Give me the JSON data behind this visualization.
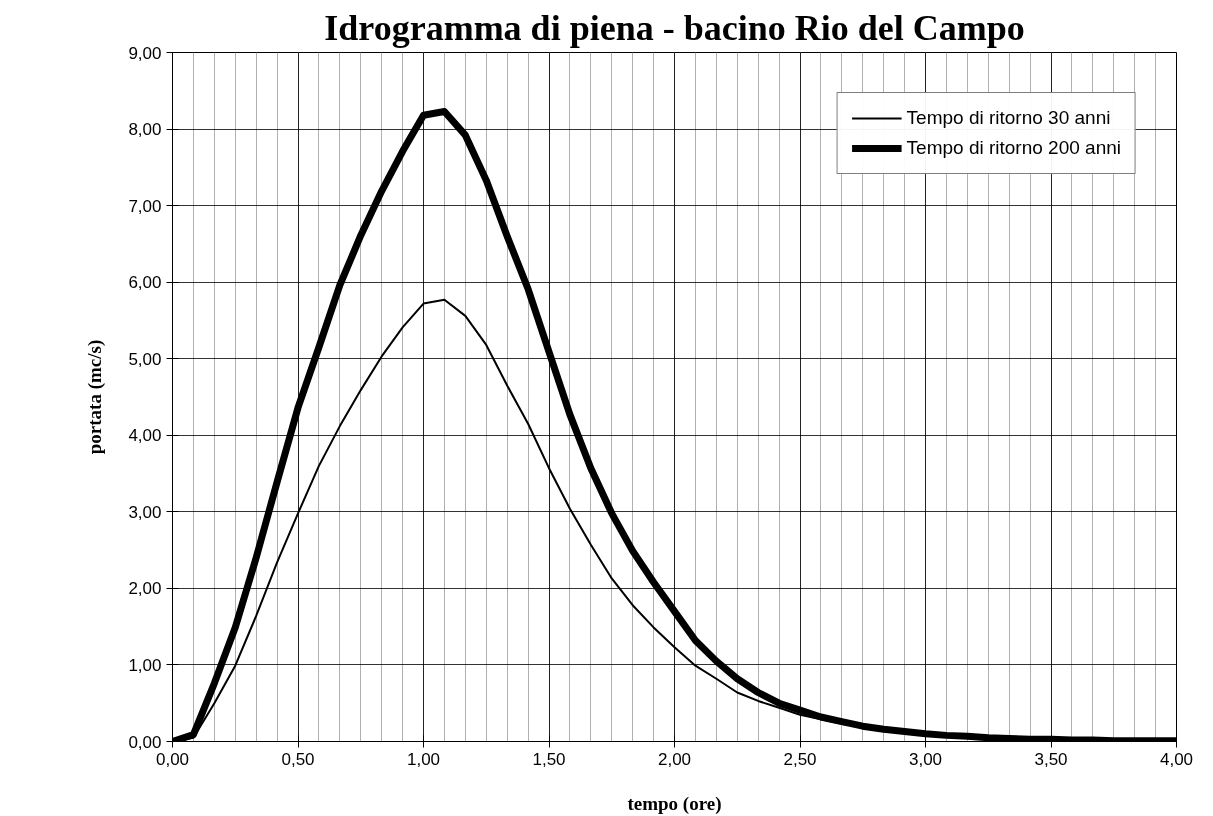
{
  "chart_data": {
    "type": "line",
    "title": "Idrogramma di piena - bacino Rio del Campo",
    "xlabel": "tempo (ore)",
    "ylabel": "portata (mc/s)",
    "x": [
      0,
      0.0833,
      0.1667,
      0.25,
      0.3333,
      0.4167,
      0.5,
      0.5833,
      0.6667,
      0.75,
      0.8333,
      0.9167,
      1.0,
      1.0833,
      1.1667,
      1.25,
      1.3333,
      1.4167,
      1.5,
      1.5833,
      1.6667,
      1.75,
      1.8333,
      1.9167,
      2.0,
      2.0833,
      2.1667,
      2.25,
      2.3333,
      2.4167,
      2.5,
      2.5833,
      2.6667,
      2.75,
      2.8333,
      2.9167,
      3.0,
      3.0833,
      3.1667,
      3.25,
      3.3333,
      3.4167,
      3.5,
      3.5833,
      3.6667,
      3.75,
      3.8333,
      3.9167,
      4.0
    ],
    "series": [
      {
        "name": "Tempo di ritorno 30 anni",
        "color": "#000000",
        "values": [
          0.0,
          0.05,
          0.5,
          0.99,
          1.64,
          2.34,
          2.98,
          3.6,
          4.12,
          4.59,
          5.03,
          5.41,
          5.72,
          5.77,
          5.56,
          5.18,
          4.65,
          4.15,
          3.57,
          3.04,
          2.57,
          2.13,
          1.78,
          1.49,
          1.23,
          0.99,
          0.82,
          0.64,
          0.53,
          0.44,
          0.35,
          0.29,
          0.23,
          0.2,
          0.15,
          0.12,
          0.09,
          0.07,
          0.06,
          0.05,
          0.04,
          0.03,
          0.02,
          0.02,
          0.01,
          0.01,
          0.01,
          0.01,
          0.01
        ]
      },
      {
        "name": "Tempo di ritorno 200 anni",
        "color": "#000000",
        "values": [
          0.0,
          0.09,
          0.76,
          1.49,
          2.4,
          3.39,
          4.36,
          5.15,
          5.96,
          6.61,
          7.19,
          7.71,
          8.18,
          8.23,
          7.92,
          7.33,
          6.6,
          5.91,
          5.09,
          4.27,
          3.57,
          2.98,
          2.49,
          2.08,
          1.7,
          1.32,
          1.05,
          0.82,
          0.64,
          0.5,
          0.41,
          0.32,
          0.26,
          0.2,
          0.16,
          0.13,
          0.1,
          0.08,
          0.07,
          0.05,
          0.04,
          0.03,
          0.03,
          0.02,
          0.02,
          0.01,
          0.01,
          0.01,
          0.01
        ]
      }
    ],
    "xlim": [
      0,
      4
    ],
    "ylim": [
      0,
      9
    ],
    "xticks": [
      {
        "value": 0,
        "label": "0,00"
      },
      {
        "value": 0.5,
        "label": "0,50"
      },
      {
        "value": 1,
        "label": "1,00"
      },
      {
        "value": 1.5,
        "label": "1,50"
      },
      {
        "value": 2,
        "label": "2,00"
      },
      {
        "value": 2.5,
        "label": "2,50"
      },
      {
        "value": 3,
        "label": "3,00"
      },
      {
        "value": 3.5,
        "label": "3,50"
      },
      {
        "value": 4,
        "label": "4,00"
      }
    ],
    "yticks": [
      {
        "value": 0,
        "label": "0,00"
      },
      {
        "value": 1,
        "label": "1,00"
      },
      {
        "value": 2,
        "label": "2,00"
      },
      {
        "value": 3,
        "label": "3,00"
      },
      {
        "value": 4,
        "label": "4,00"
      },
      {
        "value": 5,
        "label": "5,00"
      },
      {
        "value": 6,
        "label": "6,00"
      },
      {
        "value": 7,
        "label": "7,00"
      },
      {
        "value": 8,
        "label": "8,00"
      },
      {
        "value": 9,
        "label": "9,00"
      }
    ],
    "grid": true,
    "legend": "top right",
    "marker": "none",
    "line_style": "solid"
  }
}
